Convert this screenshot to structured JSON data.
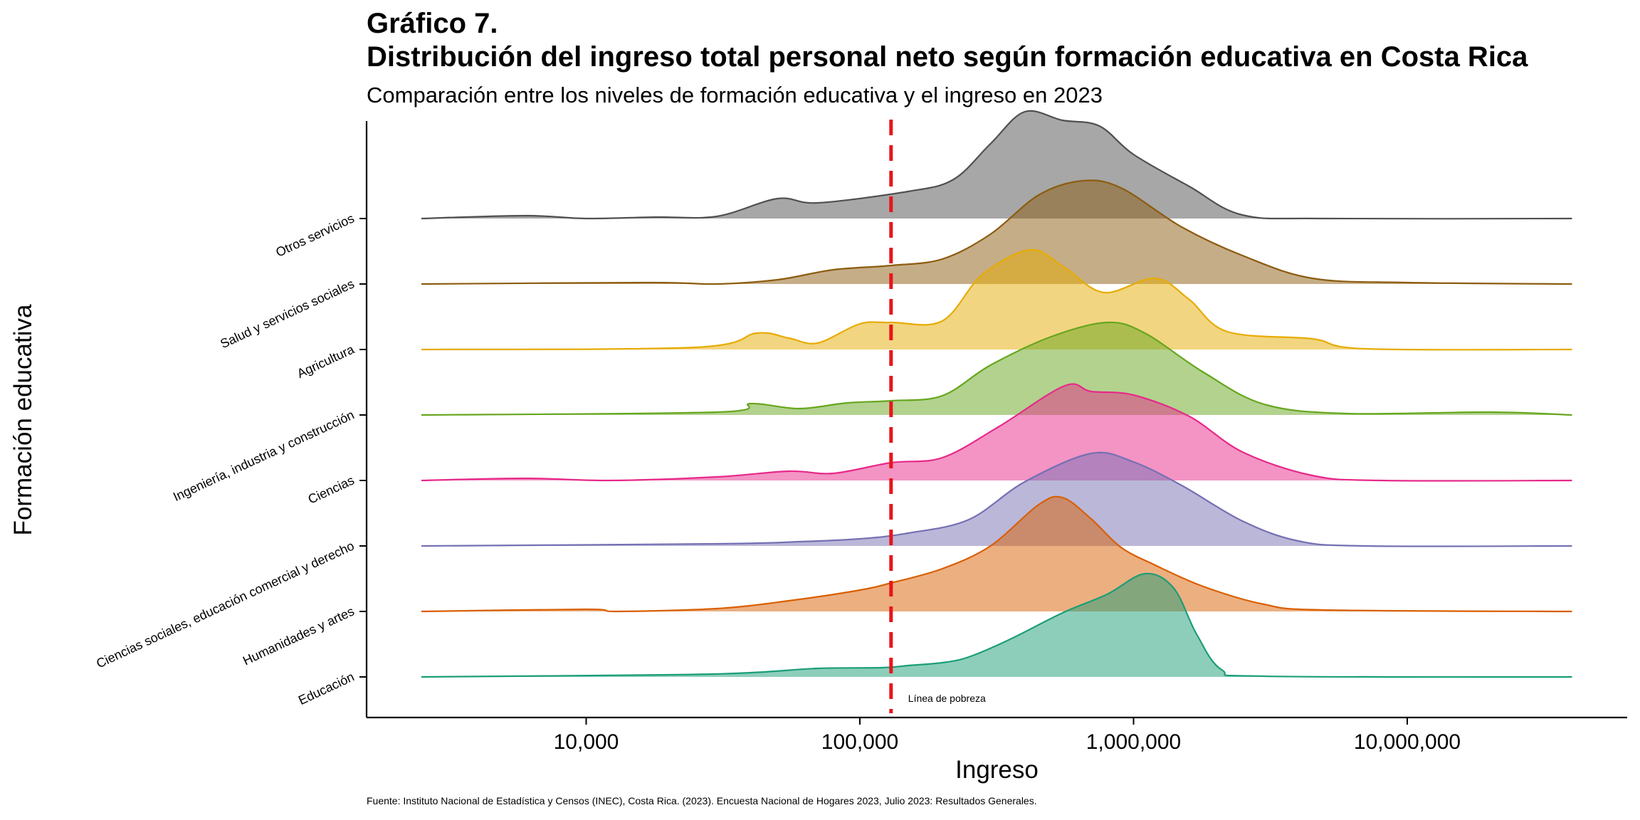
{
  "title": "Gráfico 7.",
  "title_line2": "Distribución del ingreso total personal neto según formación educativa en Costa Rica",
  "subtitle": "Comparación entre los niveles de formación educativa y el ingreso en 2023",
  "source": "Fuente: Instituto Nacional de Estadística y Censos (INEC), Costa Rica. (2023). Encuesta Nacional de Hogares 2023, Julio 2023: Resultados Generales.",
  "colors": {
    "vline": "#e8141c",
    "axis": "#000000"
  },
  "chart_data": {
    "type": "ridgeline",
    "xlabel": "Ingreso",
    "ylabel": "Formación educativa",
    "x_scale": "log10",
    "xlim": [
      2500,
      40000000
    ],
    "x_ticks": [
      {
        "value": 10000,
        "label": "10,000"
      },
      {
        "value": 100000,
        "label": "100,000"
      },
      {
        "value": 1000000,
        "label": "1,000,000"
      },
      {
        "value": 10000000,
        "label": "10,000,000"
      }
    ],
    "reference_line": {
      "value": 130000,
      "label": "Línea de pobreza",
      "style": "dashed"
    },
    "series": [
      {
        "name": "Educación",
        "color": "#1b9e77",
        "density": [
          [
            2500,
            0
          ],
          [
            20000,
            0.03
          ],
          [
            40000,
            0.06
          ],
          [
            70000,
            0.12
          ],
          [
            120000,
            0.13
          ],
          [
            150000,
            0.16
          ],
          [
            200000,
            0.2
          ],
          [
            250000,
            0.28
          ],
          [
            350000,
            0.52
          ],
          [
            550000,
            0.9
          ],
          [
            800000,
            1.16
          ],
          [
            1100000,
            1.45
          ],
          [
            1400000,
            1.25
          ],
          [
            1700000,
            0.6
          ],
          [
            2100000,
            0.1
          ],
          [
            3000000,
            0.01
          ],
          [
            40000000,
            0
          ]
        ]
      },
      {
        "name": "Humanidades y artes",
        "color": "#d95f02",
        "density": [
          [
            2500,
            0
          ],
          [
            10000,
            0.03
          ],
          [
            13000,
            0.0
          ],
          [
            30000,
            0.04
          ],
          [
            55000,
            0.15
          ],
          [
            100000,
            0.3
          ],
          [
            130000,
            0.4
          ],
          [
            200000,
            0.6
          ],
          [
            300000,
            0.92
          ],
          [
            450000,
            1.5
          ],
          [
            550000,
            1.6
          ],
          [
            700000,
            1.3
          ],
          [
            900000,
            0.9
          ],
          [
            1200000,
            0.65
          ],
          [
            1800000,
            0.35
          ],
          [
            3000000,
            0.1
          ],
          [
            5000000,
            0.02
          ],
          [
            40000000,
            0
          ]
        ]
      },
      {
        "name": "Ciencias sociales, educación comercial y derecho",
        "color": "#7570b3",
        "density": [
          [
            2500,
            0
          ],
          [
            30000,
            0.03
          ],
          [
            60000,
            0.06
          ],
          [
            100000,
            0.1
          ],
          [
            150000,
            0.18
          ],
          [
            250000,
            0.37
          ],
          [
            400000,
            0.9
          ],
          [
            700000,
            1.3
          ],
          [
            1000000,
            1.18
          ],
          [
            1500000,
            0.85
          ],
          [
            2500000,
            0.35
          ],
          [
            4000000,
            0.07
          ],
          [
            7000000,
            0.0
          ],
          [
            40000000,
            0
          ]
        ]
      },
      {
        "name": "Ciencias",
        "color": "#e7298a",
        "density": [
          [
            2500,
            0
          ],
          [
            6000,
            0.03
          ],
          [
            12000,
            0.0
          ],
          [
            30000,
            0.05
          ],
          [
            55000,
            0.13
          ],
          [
            80000,
            0.1
          ],
          [
            130000,
            0.25
          ],
          [
            200000,
            0.32
          ],
          [
            320000,
            0.75
          ],
          [
            560000,
            1.33
          ],
          [
            700000,
            1.25
          ],
          [
            1000000,
            1.2
          ],
          [
            1600000,
            0.9
          ],
          [
            2500000,
            0.4
          ],
          [
            4500000,
            0.07
          ],
          [
            8000000,
            0
          ],
          [
            40000000,
            0
          ]
        ]
      },
      {
        "name": "Ingeniería, industria y construcción",
        "color": "#66a61e",
        "density": [
          [
            2500,
            0
          ],
          [
            30000,
            0.04
          ],
          [
            40000,
            0.16
          ],
          [
            60000,
            0.09
          ],
          [
            90000,
            0.17
          ],
          [
            130000,
            0.2
          ],
          [
            200000,
            0.27
          ],
          [
            300000,
            0.7
          ],
          [
            500000,
            1.1
          ],
          [
            800000,
            1.3
          ],
          [
            1100000,
            1.15
          ],
          [
            1800000,
            0.6
          ],
          [
            3000000,
            0.15
          ],
          [
            6000000,
            0.02
          ],
          [
            20000000,
            0.04
          ],
          [
            40000000,
            0
          ]
        ]
      },
      {
        "name": "Agricultura",
        "color": "#e6ab02",
        "density": [
          [
            2500,
            0
          ],
          [
            25000,
            0.03
          ],
          [
            42000,
            0.23
          ],
          [
            55000,
            0.16
          ],
          [
            70000,
            0.09
          ],
          [
            100000,
            0.36
          ],
          [
            130000,
            0.38
          ],
          [
            200000,
            0.4
          ],
          [
            280000,
            1.05
          ],
          [
            420000,
            1.4
          ],
          [
            560000,
            1.15
          ],
          [
            780000,
            0.8
          ],
          [
            1200000,
            1.0
          ],
          [
            1600000,
            0.7
          ],
          [
            2200000,
            0.25
          ],
          [
            4500000,
            0.15
          ],
          [
            7000000,
            0.01
          ],
          [
            40000000,
            0
          ]
        ]
      },
      {
        "name": "Salud y servicios sociales",
        "color": "#8c5c0f",
        "density": [
          [
            2500,
            0
          ],
          [
            17000,
            0.02
          ],
          [
            30000,
            0.0
          ],
          [
            50000,
            0.06
          ],
          [
            80000,
            0.2
          ],
          [
            130000,
            0.26
          ],
          [
            200000,
            0.35
          ],
          [
            300000,
            0.7
          ],
          [
            450000,
            1.25
          ],
          [
            650000,
            1.45
          ],
          [
            900000,
            1.35
          ],
          [
            1500000,
            0.8
          ],
          [
            2500000,
            0.4
          ],
          [
            4500000,
            0.08
          ],
          [
            10000000,
            0.02
          ],
          [
            40000000,
            0
          ]
        ]
      },
      {
        "name": "Otros servicios",
        "color": "#505050",
        "density": [
          [
            2500,
            0
          ],
          [
            6000,
            0.04
          ],
          [
            10000,
            0.0
          ],
          [
            18000,
            0.02
          ],
          [
            30000,
            0.03
          ],
          [
            50000,
            0.28
          ],
          [
            70000,
            0.22
          ],
          [
            150000,
            0.38
          ],
          [
            220000,
            0.55
          ],
          [
            300000,
            1.05
          ],
          [
            400000,
            1.5
          ],
          [
            550000,
            1.38
          ],
          [
            750000,
            1.3
          ],
          [
            1000000,
            0.9
          ],
          [
            1600000,
            0.45
          ],
          [
            2500000,
            0.05
          ],
          [
            5000000,
            0
          ],
          [
            40000000,
            0
          ]
        ]
      }
    ]
  }
}
